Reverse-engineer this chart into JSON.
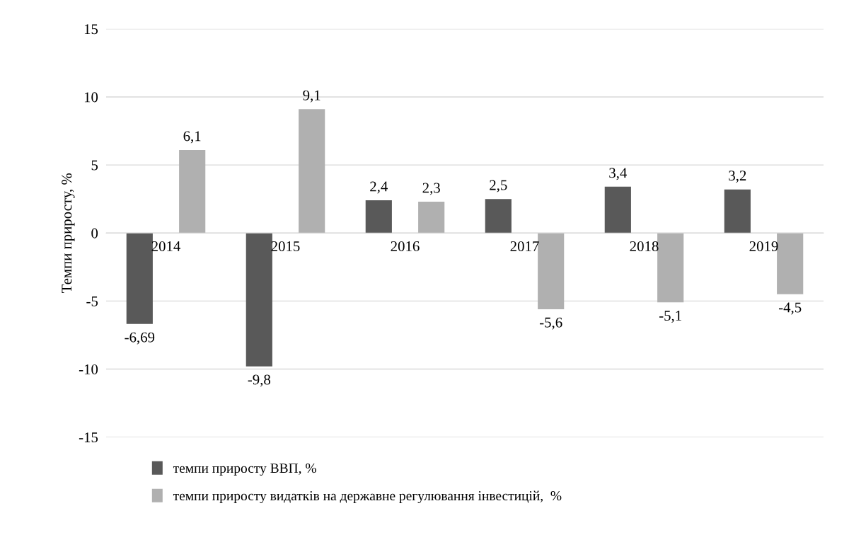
{
  "chart_data": {
    "type": "bar",
    "ylabel": "Темпи приросту, %",
    "categories": [
      "2014",
      "2015",
      "2016",
      "2017",
      "2018",
      "2019"
    ],
    "series": [
      {
        "name": "темпи приросту ВВП, %",
        "color": "#595959",
        "values": [
          -6.69,
          -9.8,
          2.4,
          2.5,
          3.4,
          3.2
        ],
        "value_labels": [
          "-6,69",
          "-9,8",
          "2,4",
          "2,5",
          "3,4",
          "3,2"
        ]
      },
      {
        "name": "темпи приросту видатків на державне регулювання інвестицій,  %",
        "color": "#b0b0b0",
        "values": [
          6.1,
          9.1,
          2.3,
          -5.6,
          -5.1,
          -4.5
        ],
        "value_labels": [
          "6,1",
          "9,1",
          "2,3",
          "-5,6",
          "-5,1",
          "-4,5"
        ]
      }
    ],
    "ylim": [
      -15,
      15
    ],
    "yticks": [
      {
        "value": -15,
        "label": "-15"
      },
      {
        "value": -10,
        "label": "-10"
      },
      {
        "value": -5,
        "label": "-5"
      },
      0,
      5,
      10,
      15
    ],
    "grid": "y",
    "legend": "bottom"
  }
}
